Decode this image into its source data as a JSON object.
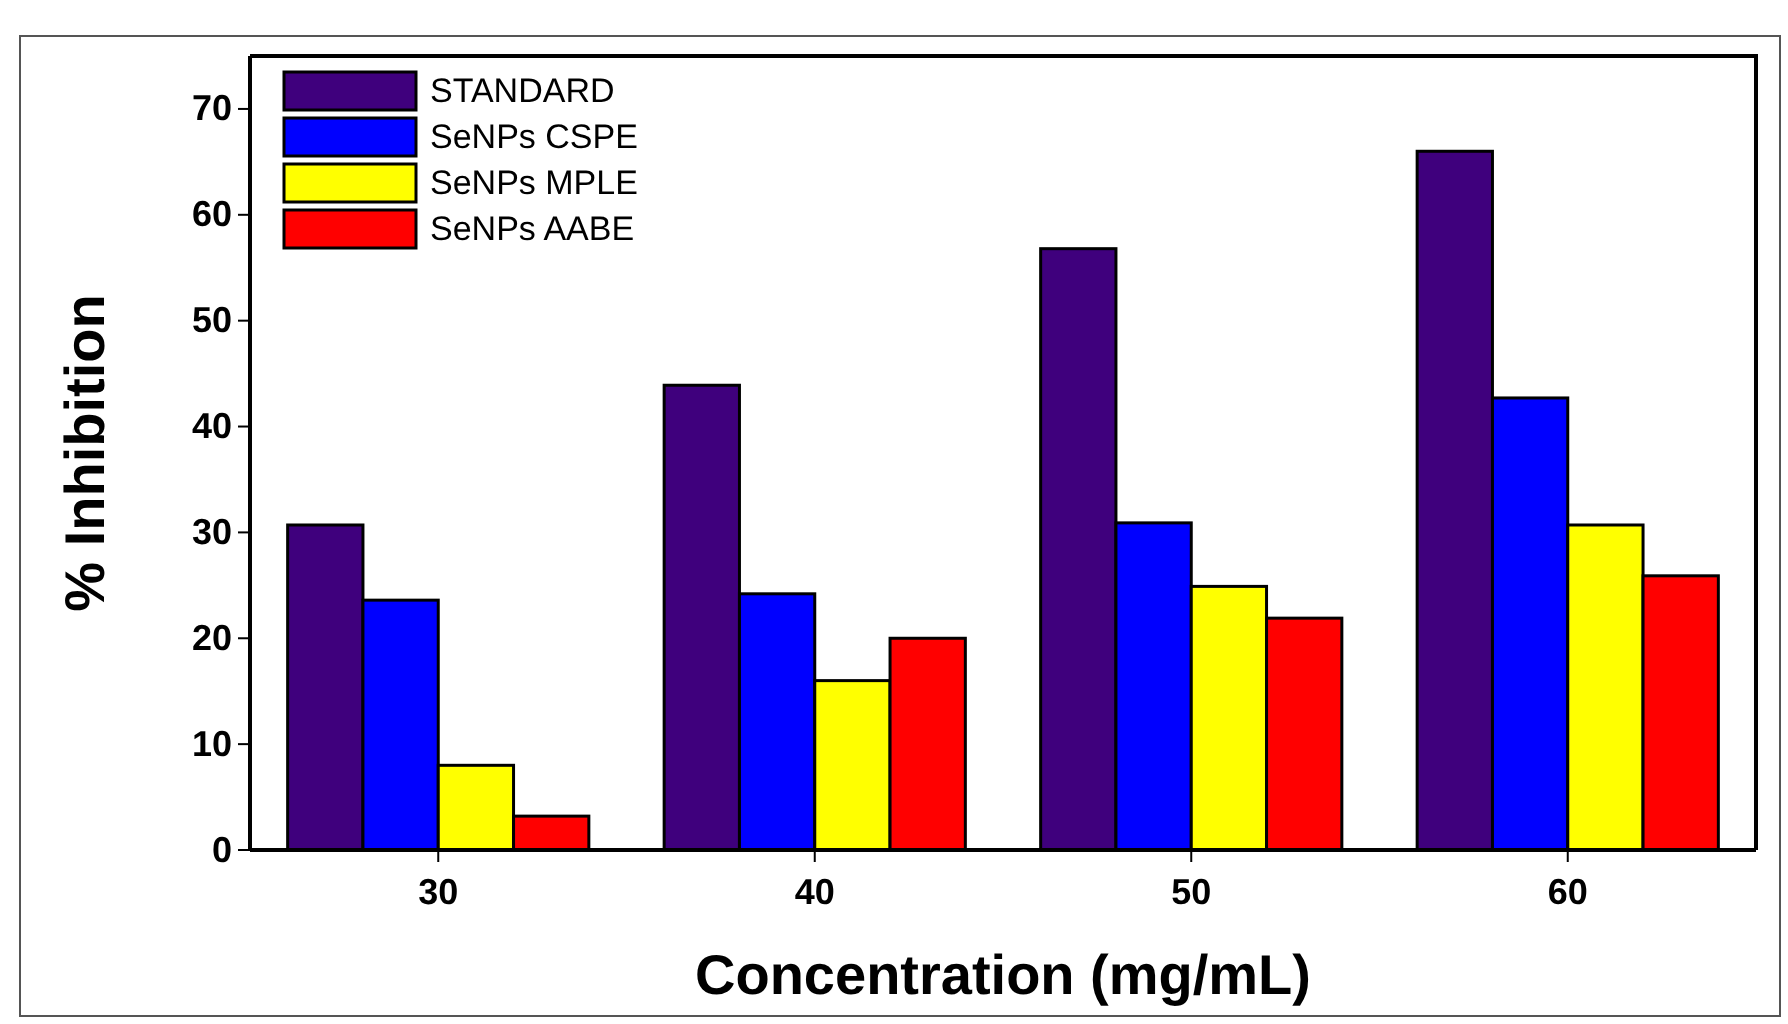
{
  "chart_data": {
    "type": "bar",
    "xlabel": "Concentration (mg/mL)",
    "ylabel": "% Inhibition",
    "categories": [
      "30",
      "40",
      "50",
      "60"
    ],
    "series": [
      {
        "name": "STANDARD",
        "color": "#3f007d",
        "values": [
          30.7,
          43.9,
          56.8,
          66.0
        ]
      },
      {
        "name": "SeNPs CSPE",
        "color": "#0000ff",
        "values": [
          23.6,
          24.2,
          30.9,
          42.7
        ]
      },
      {
        "name": "SeNPs MPLE",
        "color": "#ffff00",
        "values": [
          8.0,
          16.0,
          24.9,
          30.7
        ]
      },
      {
        "name": "SeNPs AABE",
        "color": "#ff0000",
        "values": [
          3.2,
          20.0,
          21.9,
          25.9
        ]
      }
    ],
    "ylim": [
      0,
      75
    ],
    "yticks": [
      0,
      10,
      20,
      30,
      40,
      50,
      60,
      70
    ],
    "grid": false,
    "legend": "top left"
  }
}
